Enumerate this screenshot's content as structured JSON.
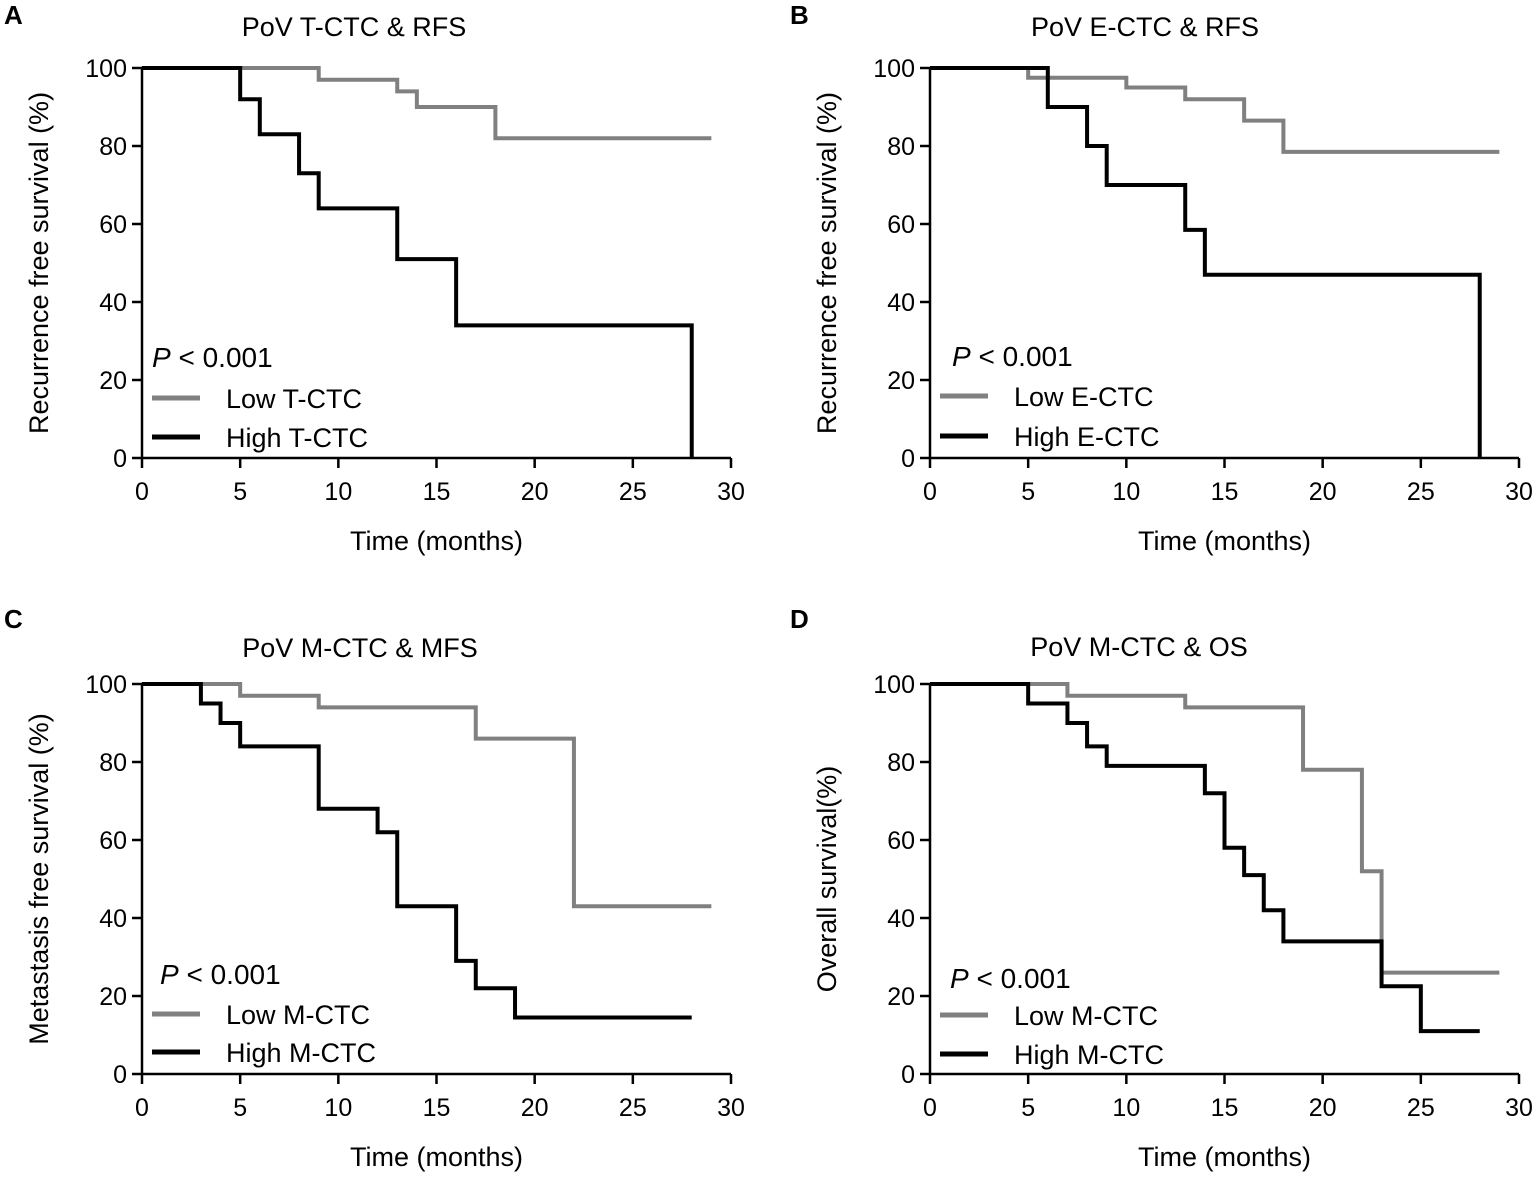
{
  "chart_data": [
    {
      "type": "line",
      "panel": "A",
      "title": "PoV T-CTC & RFS",
      "xlabel": "Time (months)",
      "ylabel": "Recurrence free survival (%)",
      "xlim": [
        0,
        30
      ],
      "ylim": [
        0,
        100
      ],
      "xticks": [
        0,
        5,
        10,
        15,
        20,
        25,
        30
      ],
      "yticks": [
        0,
        20,
        40,
        60,
        80,
        100
      ],
      "pvalue": {
        "italic": "P",
        "rest": " < 0.001"
      },
      "series": [
        {
          "name": "Low T-CTC",
          "color": "#808080",
          "x": [
            0,
            9,
            13,
            14,
            18,
            29
          ],
          "y": [
            100,
            97,
            94,
            90,
            82,
            82
          ]
        },
        {
          "name": "High T-CTC",
          "color": "#000000",
          "x": [
            0,
            5,
            6,
            8,
            9,
            13,
            16,
            28
          ],
          "y": [
            100,
            92,
            83,
            73,
            64,
            51,
            34,
            0
          ]
        }
      ]
    },
    {
      "type": "line",
      "panel": "B",
      "title": "PoV E-CTC & RFS",
      "xlabel": "Time (months)",
      "ylabel": "Recurrence free survival (%)",
      "xlim": [
        0,
        30
      ],
      "ylim": [
        0,
        100
      ],
      "xticks": [
        0,
        5,
        10,
        15,
        20,
        25,
        30
      ],
      "yticks": [
        0,
        20,
        40,
        60,
        80,
        100
      ],
      "pvalue": {
        "italic": "P",
        "rest": " < 0.001"
      },
      "series": [
        {
          "name": "Low E-CTC",
          "color": "#808080",
          "x": [
            0,
            5,
            10,
            13,
            16,
            18,
            29
          ],
          "y": [
            100,
            97.5,
            95,
            92,
            86.5,
            78.5,
            78.5
          ]
        },
        {
          "name": "High E-CTC",
          "color": "#000000",
          "x": [
            0,
            6,
            8,
            9,
            13,
            14,
            28
          ],
          "y": [
            100,
            90,
            80,
            70,
            58.5,
            47,
            0
          ]
        }
      ]
    },
    {
      "type": "line",
      "panel": "C",
      "title": "PoV M-CTC & MFS",
      "xlabel": "Time (months)",
      "ylabel": "Metastasis free survival (%)",
      "xlim": [
        0,
        30
      ],
      "ylim": [
        0,
        100
      ],
      "xticks": [
        0,
        5,
        10,
        15,
        20,
        25,
        30
      ],
      "yticks": [
        0,
        20,
        40,
        60,
        80,
        100
      ],
      "pvalue": {
        "italic": "P",
        "rest": " < 0.001"
      },
      "series": [
        {
          "name": "Low M-CTC",
          "color": "#808080",
          "x": [
            0,
            5,
            9,
            17,
            22,
            29
          ],
          "y": [
            100,
            97,
            94,
            86,
            43,
            43
          ]
        },
        {
          "name": "High M-CTC",
          "color": "#000000",
          "x": [
            0,
            3,
            4,
            5,
            9,
            12,
            13,
            16,
            17,
            19,
            28
          ],
          "y": [
            100,
            95,
            90,
            84,
            68,
            62,
            43,
            29,
            22,
            14.5,
            14.5
          ]
        }
      ]
    },
    {
      "type": "line",
      "panel": "D",
      "title": "PoV M-CTC & OS",
      "xlabel": "Time (months)",
      "ylabel": "Overall survival(%)",
      "xlim": [
        0,
        30
      ],
      "ylim": [
        0,
        100
      ],
      "xticks": [
        0,
        5,
        10,
        15,
        20,
        25,
        30
      ],
      "yticks": [
        0,
        20,
        40,
        60,
        80,
        100
      ],
      "pvalue": {
        "italic": "P",
        "rest": " < 0.001"
      },
      "series": [
        {
          "name": "Low M-CTC",
          "color": "#808080",
          "x": [
            0,
            7,
            13,
            19,
            22,
            23,
            29
          ],
          "y": [
            100,
            97,
            94,
            78,
            52,
            26,
            26
          ]
        },
        {
          "name": "High M-CTC",
          "color": "#000000",
          "x": [
            0,
            5,
            7,
            8,
            9,
            14,
            15,
            16,
            17,
            18,
            23,
            25,
            28
          ],
          "y": [
            100,
            95,
            90,
            84,
            79,
            72,
            58,
            51,
            42,
            34,
            22.5,
            11,
            11
          ]
        }
      ]
    }
  ]
}
